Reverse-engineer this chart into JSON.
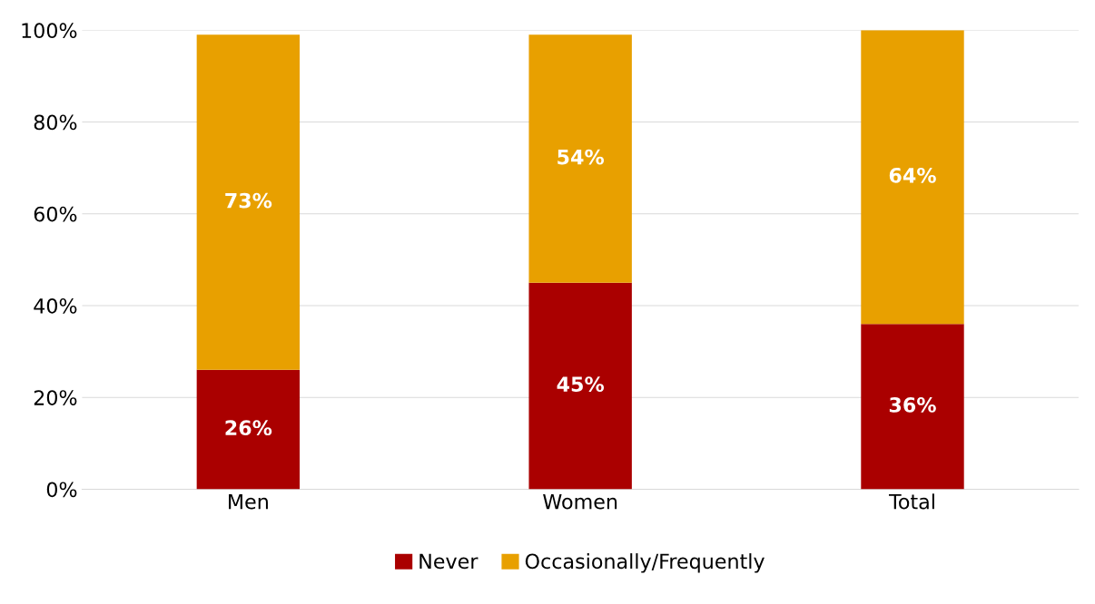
{
  "chart_data": {
    "type": "bar",
    "stacked": true,
    "categories": [
      "Men",
      "Women",
      "Total"
    ],
    "series": [
      {
        "name": "Never",
        "color": "#aa0000",
        "values": [
          26,
          45,
          36
        ]
      },
      {
        "name": "Occasionally/Frequently",
        "color": "#e8a000",
        "values": [
          73,
          54,
          64
        ]
      }
    ],
    "ylim": [
      0,
      100
    ],
    "yticks": [
      {
        "value": 0,
        "label": "0%"
      },
      {
        "value": 20,
        "label": "20%"
      },
      {
        "value": 40,
        "label": "40%"
      },
      {
        "value": 60,
        "label": "60%"
      },
      {
        "value": 80,
        "label": "80%"
      },
      {
        "value": 100,
        "label": "100%"
      }
    ],
    "value_labels": [
      [
        "26%",
        "45%",
        "36%"
      ],
      [
        "73%",
        "54%",
        "64%"
      ]
    ],
    "grid": "y",
    "legend": "bottom"
  }
}
